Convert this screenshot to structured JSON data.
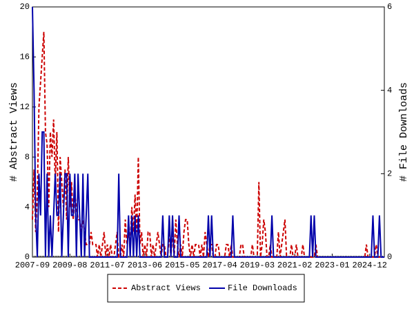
{
  "chart_data": {
    "type": "line",
    "categories": [
      "2007-09",
      null,
      null,
      null,
      null,
      null,
      null,
      null,
      null,
      null,
      null,
      null,
      null,
      null,
      null,
      null,
      null,
      null,
      null,
      null,
      null,
      null,
      null,
      "2009-08",
      null,
      null,
      null,
      null,
      null,
      null,
      null,
      null,
      null,
      null,
      null,
      null,
      null,
      null,
      null,
      null,
      null,
      null,
      null,
      null,
      null,
      null,
      "2011-07",
      null,
      null,
      null,
      null,
      null,
      null,
      null,
      null,
      null,
      null,
      null,
      null,
      null,
      null,
      null,
      null,
      null,
      null,
      null,
      null,
      null,
      null,
      "2013-06",
      null,
      null,
      null,
      null,
      null,
      null,
      null,
      null,
      null,
      null,
      null,
      null,
      null,
      null,
      null,
      null,
      null,
      null,
      null,
      null,
      null,
      null,
      "2015-05",
      null,
      null,
      null,
      null,
      null,
      null,
      null,
      null,
      null,
      null,
      null,
      null,
      null,
      null,
      null,
      null,
      null,
      null,
      null,
      null,
      null,
      null,
      "2017-04",
      null,
      null,
      null,
      null,
      null,
      null,
      null,
      null,
      null,
      null,
      null,
      null,
      null,
      null,
      null,
      null,
      null,
      null,
      null,
      null,
      null,
      null,
      "2019-03",
      null,
      null,
      null,
      null,
      null,
      null,
      null,
      null,
      null,
      null,
      null,
      null,
      null,
      null,
      null,
      null,
      null,
      null,
      null,
      null,
      null,
      null,
      "2021-02",
      null,
      null,
      null,
      null,
      null,
      null,
      null,
      null,
      null,
      null,
      null,
      null,
      null,
      null,
      null,
      null,
      null,
      null,
      null,
      null,
      null,
      null,
      "2023-01",
      null,
      null,
      null,
      null,
      null,
      null,
      null,
      null,
      null,
      null,
      null,
      null,
      null,
      null,
      null,
      null,
      null,
      null,
      null,
      null,
      null,
      null,
      "2024-12",
      null,
      null,
      null,
      null,
      null,
      null,
      null,
      null,
      null
    ],
    "ylabel": "# Abstract Views",
    "y2label": "# File Downloads",
    "ylim": [
      0,
      20
    ],
    "yticks": [
      0,
      4,
      8,
      12,
      16,
      20
    ],
    "y2lim": [
      0,
      6
    ],
    "y2ticks": [
      0,
      2,
      4,
      6
    ],
    "series": [
      {
        "name": "Abstract Views",
        "color": "#cc0000",
        "dashed": true,
        "values": [
          3,
          7,
          2,
          5,
          12,
          14,
          16,
          18,
          10,
          9,
          4,
          10,
          8,
          11,
          6,
          10,
          2,
          8,
          6,
          4,
          7,
          3,
          8,
          4,
          6,
          3,
          5,
          4,
          3,
          3,
          2,
          3,
          2,
          1,
          1,
          1,
          2,
          1,
          1,
          1,
          0,
          1,
          0,
          1,
          2,
          0,
          1,
          0,
          1,
          0,
          0,
          1,
          2,
          0,
          0,
          1,
          0,
          3,
          1,
          2,
          1,
          4,
          2,
          5,
          2,
          8,
          1,
          2,
          0,
          1,
          0,
          2,
          2,
          0,
          1,
          0,
          1,
          2,
          1,
          0,
          1,
          1,
          0,
          0,
          2,
          0,
          2,
          0,
          3,
          1,
          0,
          1,
          0,
          2,
          3,
          3,
          1,
          0,
          1,
          0,
          1,
          1,
          1,
          0,
          1,
          0,
          2,
          1,
          0,
          1,
          1,
          0,
          0,
          1,
          1,
          0,
          0,
          0,
          0,
          1,
          1,
          0,
          1,
          0,
          0,
          0,
          0,
          0,
          1,
          1,
          0,
          0,
          0,
          0,
          0,
          1,
          0,
          0,
          0,
          6,
          0,
          1,
          3,
          2,
          0,
          0,
          1,
          0,
          0,
          0,
          0,
          2,
          0,
          1,
          2,
          3,
          0,
          0,
          0,
          1,
          0,
          0,
          1,
          0,
          0,
          0,
          1,
          0,
          0,
          0,
          0,
          0,
          0,
          0,
          1,
          0,
          0,
          0,
          0,
          0,
          0,
          0,
          0,
          0,
          0,
          0,
          0,
          0,
          0,
          0,
          0,
          0,
          0,
          0,
          0,
          0,
          0,
          0,
          0,
          0,
          0,
          0,
          0,
          0,
          0,
          1,
          0,
          0,
          0,
          0,
          0,
          1,
          0,
          0,
          0,
          0,
          0
        ]
      },
      {
        "name": "File Downloads",
        "color": "#0000aa",
        "axis": "y2",
        "values": [
          6,
          4,
          1,
          0,
          2,
          1,
          3,
          3,
          0,
          2,
          0,
          1,
          0,
          1,
          2,
          1,
          1,
          2,
          0,
          1,
          2,
          2,
          0,
          2,
          1,
          1,
          2,
          0,
          2,
          1,
          0,
          2,
          0,
          1,
          2,
          0,
          0,
          0,
          0,
          0,
          0,
          0,
          0,
          0,
          0,
          0,
          0,
          0,
          0,
          0,
          0,
          0,
          0,
          2,
          0,
          0,
          0,
          0,
          0,
          1,
          0,
          1,
          0,
          1,
          0,
          1,
          0,
          0,
          0,
          0,
          0,
          0,
          0,
          0,
          0,
          0,
          0,
          0,
          0,
          0,
          1,
          0,
          0,
          0,
          1,
          0,
          1,
          0,
          0,
          0,
          1,
          0,
          0,
          0,
          0,
          0,
          0,
          0,
          0,
          0,
          0,
          0,
          0,
          0,
          0,
          0,
          0,
          0,
          1,
          0,
          1,
          0,
          0,
          0,
          0,
          0,
          0,
          0,
          0,
          0,
          0,
          0,
          0,
          1,
          0,
          0,
          0,
          0,
          0,
          0,
          0,
          0,
          0,
          0,
          0,
          0,
          0,
          0,
          0,
          0,
          0,
          0,
          0,
          0,
          0,
          0,
          0,
          1,
          0,
          0,
          0,
          0,
          0,
          0,
          0,
          0,
          0,
          0,
          0,
          0,
          0,
          0,
          0,
          0,
          0,
          0,
          0,
          0,
          0,
          0,
          0,
          1,
          0,
          1,
          0,
          0,
          0,
          0,
          0,
          0,
          0,
          0,
          0,
          0,
          0,
          0,
          0,
          0,
          0,
          0,
          0,
          0,
          0,
          0,
          0,
          0,
          0,
          0,
          0,
          0,
          0,
          0,
          0,
          0,
          0,
          0,
          0,
          0,
          0,
          1,
          0,
          0,
          0,
          1,
          0,
          0,
          0
        ]
      }
    ]
  }
}
